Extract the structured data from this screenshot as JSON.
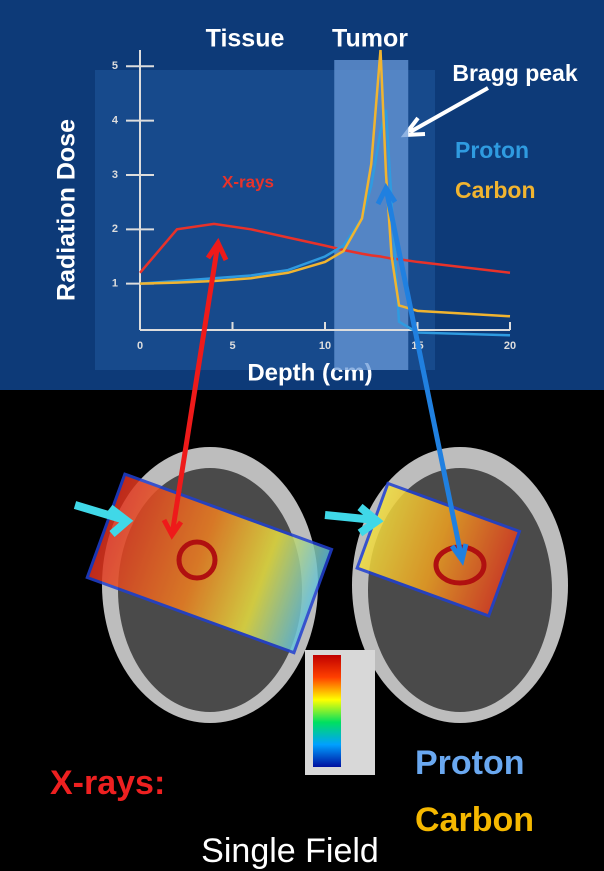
{
  "chart_data": {
    "type": "line",
    "region_labels": [
      "Tissue",
      "Tumor"
    ],
    "annotation": "Bragg peak",
    "x_label": "Depth (cm)",
    "y_label": "Radiation Dose",
    "x": [
      0,
      2,
      4,
      6,
      8,
      10,
      11,
      12,
      12.5,
      13,
      13.3,
      13.6,
      14,
      15,
      20
    ],
    "series": [
      {
        "name": "X-rays",
        "color": "#e8322a",
        "values": [
          1.2,
          2.0,
          2.1,
          2.0,
          1.85,
          1.7,
          1.62,
          1.55,
          1.52,
          1.5,
          1.48,
          1.46,
          1.45,
          1.4,
          1.2
        ]
      },
      {
        "name": "Proton",
        "color": "#2f9be0",
        "values": [
          1,
          1.05,
          1.1,
          1.15,
          1.25,
          1.5,
          1.7,
          2.2,
          2.8,
          3.8,
          4.2,
          2.5,
          0.3,
          0.1,
          0.05
        ]
      },
      {
        "name": "Carbon",
        "color": "#f0b430",
        "values": [
          1,
          1.02,
          1.05,
          1.1,
          1.2,
          1.4,
          1.6,
          2.2,
          3.2,
          5.3,
          3.0,
          1.5,
          0.6,
          0.5,
          0.4
        ]
      }
    ],
    "shaded_x_range": [
      10.5,
      14.5
    ],
    "xlim": [
      0,
      20
    ],
    "ylim": [
      0,
      5.3
    ],
    "xticks": [
      0,
      5,
      10,
      15,
      20
    ],
    "yticks": [
      1,
      2,
      3,
      4,
      5
    ]
  },
  "bottom_panel": {
    "labels": [
      "X-rays:",
      "Proton",
      "Carbon"
    ],
    "caption": "Single Field"
  }
}
